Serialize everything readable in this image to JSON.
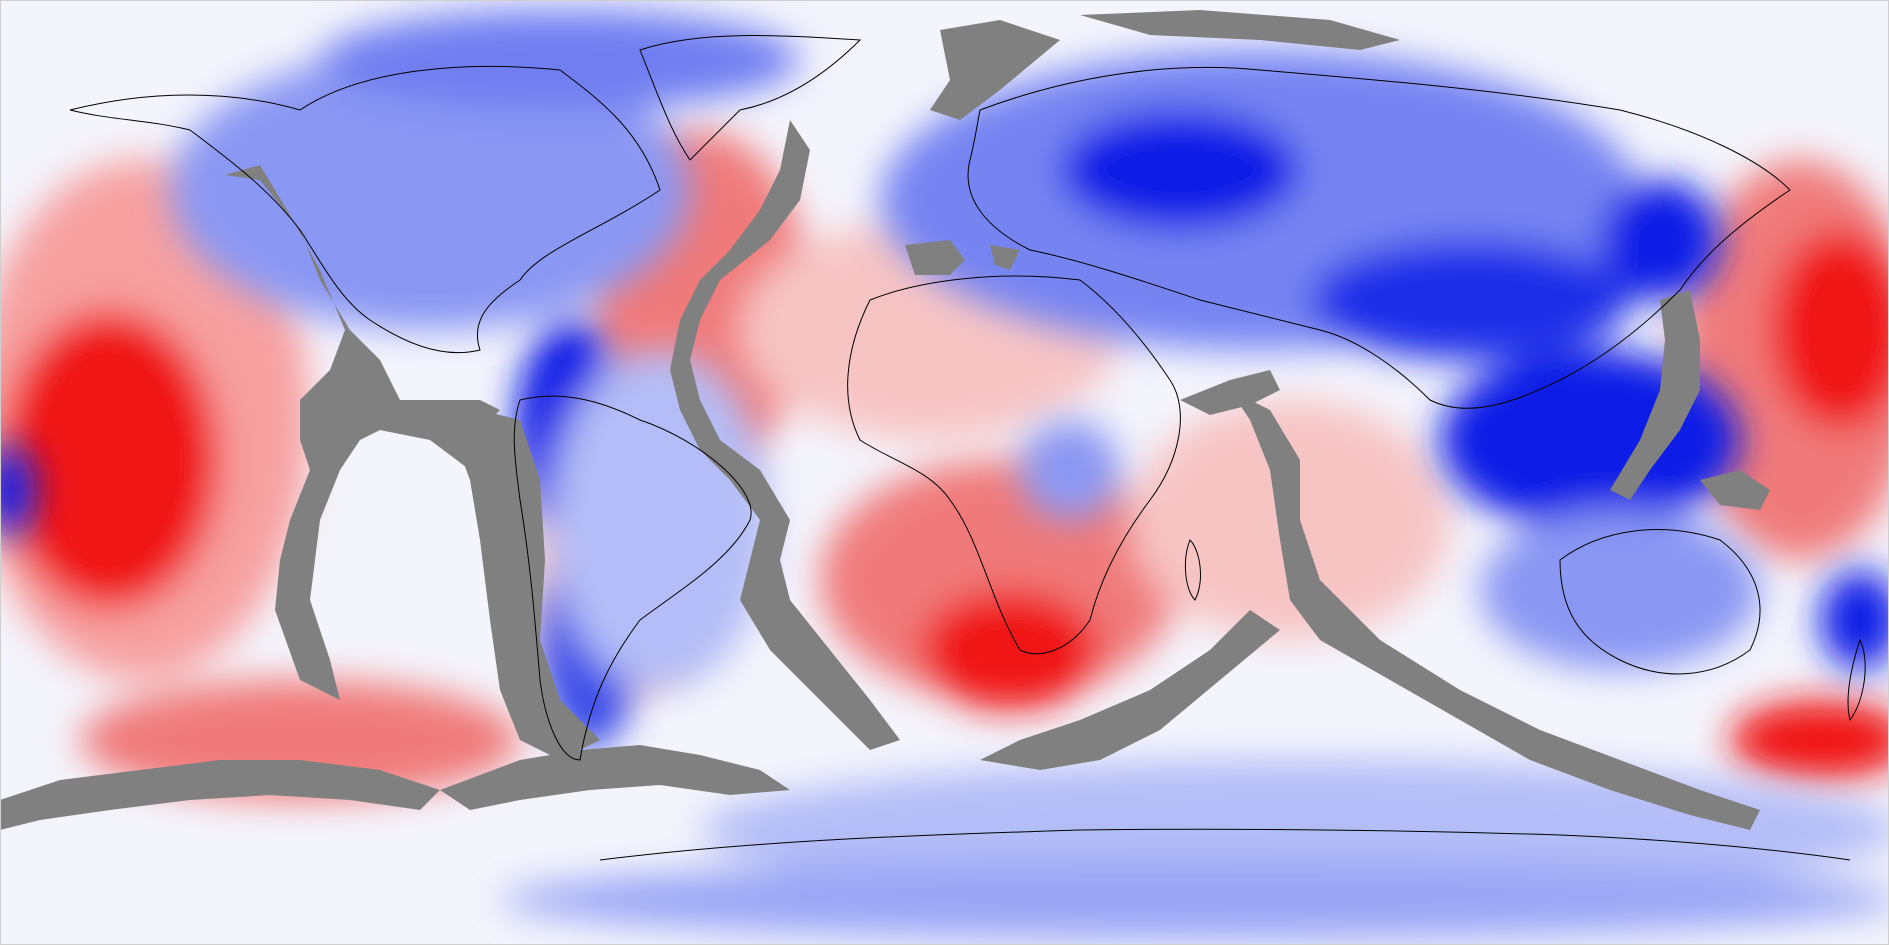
{
  "map": {
    "projection": "equirectangular",
    "field_palette": {
      "negative_strong": "#0a1ee6",
      "negative_mid": "#5a6cf0",
      "negative_light": "#b4bdf7",
      "neutral": "#f2f2fc",
      "positive_light": "#f7c4c4",
      "positive_mid": "#f07a7a",
      "positive_strong": "#f01414"
    },
    "mask_color": "#808080",
    "coastline_color": "#000000",
    "background_color": "#f4f4fc",
    "labels": []
  }
}
